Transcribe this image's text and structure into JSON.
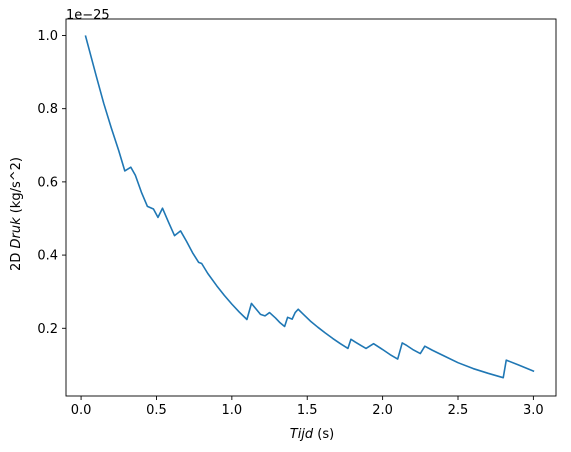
{
  "chart_data": {
    "type": "line",
    "xlabel": {
      "italic": "Tijd",
      "rest": " (s)"
    },
    "ylabel": {
      "prefix": "2D ",
      "italic": "Druk",
      "rest": " (kg/s^2)"
    },
    "offset_text": "1e−25",
    "y_scale": 1e-25,
    "xlim": [
      -0.1,
      3.15
    ],
    "ylim": [
      0.015,
      1.045
    ],
    "xticks": [
      0.0,
      0.5,
      1.0,
      1.5,
      2.0,
      2.5,
      3.0
    ],
    "xtick_labels": [
      "0.0",
      "0.5",
      "1.0",
      "1.5",
      "2.0",
      "2.5",
      "3.0"
    ],
    "yticks": [
      0.2,
      0.4,
      0.6,
      0.8,
      1.0
    ],
    "ytick_labels": [
      "0.2",
      "0.4",
      "0.6",
      "0.8",
      "1.0"
    ],
    "grid": false,
    "series": [
      {
        "color": "#1f77b4",
        "x": [
          0.03,
          0.1,
          0.15,
          0.2,
          0.25,
          0.29,
          0.33,
          0.36,
          0.4,
          0.44,
          0.48,
          0.51,
          0.54,
          0.58,
          0.62,
          0.66,
          0.7,
          0.74,
          0.78,
          0.8,
          0.84,
          0.9,
          0.95,
          1.0,
          1.05,
          1.1,
          1.13,
          1.16,
          1.19,
          1.22,
          1.25,
          1.29,
          1.32,
          1.35,
          1.37,
          1.4,
          1.42,
          1.44,
          1.47,
          1.52,
          1.57,
          1.62,
          1.67,
          1.72,
          1.77,
          1.79,
          1.82,
          1.86,
          1.89,
          1.94,
          2.0,
          2.05,
          2.1,
          2.13,
          2.16,
          2.2,
          2.25,
          2.28,
          2.33,
          2.4,
          2.5,
          2.6,
          2.7,
          2.8,
          2.82,
          2.9,
          3.0
        ],
        "y": [
          0.998,
          0.89,
          0.815,
          0.748,
          0.685,
          0.63,
          0.64,
          0.618,
          0.572,
          0.533,
          0.526,
          0.503,
          0.528,
          0.49,
          0.453,
          0.466,
          0.437,
          0.406,
          0.38,
          0.377,
          0.35,
          0.316,
          0.29,
          0.266,
          0.244,
          0.224,
          0.268,
          0.253,
          0.238,
          0.234,
          0.243,
          0.228,
          0.215,
          0.205,
          0.23,
          0.225,
          0.243,
          0.252,
          0.24,
          0.22,
          0.203,
          0.187,
          0.172,
          0.158,
          0.145,
          0.17,
          0.162,
          0.152,
          0.145,
          0.158,
          0.142,
          0.128,
          0.116,
          0.16,
          0.153,
          0.142,
          0.131,
          0.151,
          0.14,
          0.126,
          0.106,
          0.09,
          0.077,
          0.065,
          0.113,
          0.1,
          0.083
        ]
      }
    ]
  }
}
